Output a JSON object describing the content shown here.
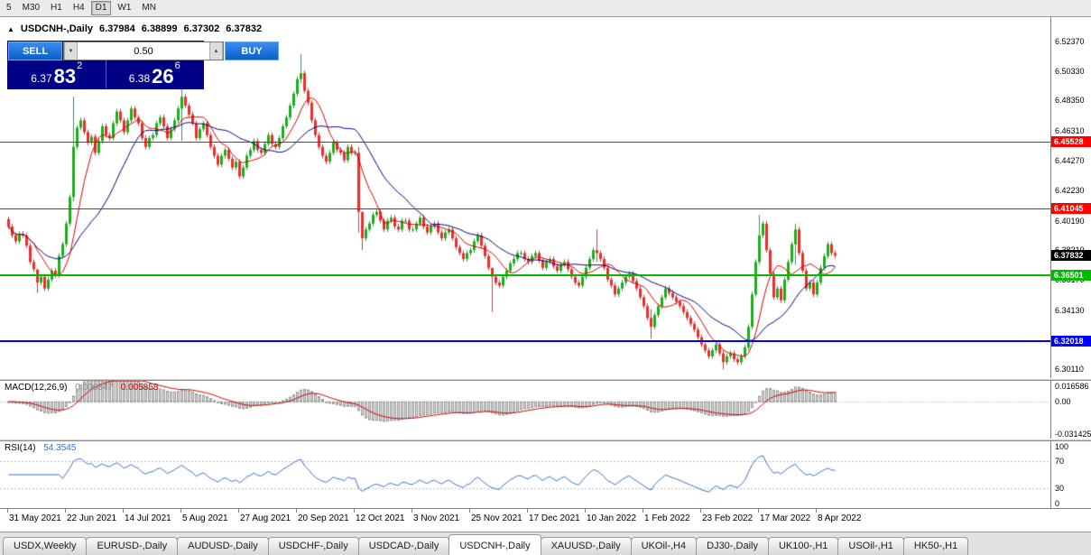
{
  "toolbar": {
    "timeframes": [
      "5",
      "M30",
      "H1",
      "H4",
      "D1",
      "W1",
      "MN"
    ],
    "active": "D1"
  },
  "chart_header": {
    "symbol": "USDCNH-,Daily",
    "open": "6.37984",
    "high": "6.38899",
    "low": "6.37302",
    "close": "6.37832"
  },
  "trade_panel": {
    "collapse_icon": "▲",
    "sell_label": "SELL",
    "buy_label": "BUY",
    "volume": "0.50",
    "spinner_down_icon": "▼",
    "spinner_up_icon": "▲",
    "sell_price": {
      "prefix": "6.37",
      "big": "83",
      "sup": "2"
    },
    "buy_price": {
      "prefix": "6.38",
      "big": "26",
      "sup": "6"
    }
  },
  "indicators": {
    "macd": {
      "label": "MACD(12,26,9)",
      "value_main": "0.006347",
      "value_signal": "0.005858",
      "axis_ticks": [
        {
          "value": 0.016586,
          "label": "0.016586"
        },
        {
          "value": 0,
          "label": "0.00"
        },
        {
          "value": -0.031425,
          "label": "-0.031425"
        }
      ]
    },
    "rsi": {
      "label": "RSI(14)",
      "value": "54.3545",
      "axis_ticks": [
        {
          "value": 100,
          "label": "100"
        },
        {
          "value": 70,
          "label": "70"
        },
        {
          "value": 30,
          "label": "30"
        },
        {
          "value": 0,
          "label": "0"
        }
      ]
    }
  },
  "price_axis": {
    "ticks": [
      {
        "value": 6.5237,
        "label": "6.52370"
      },
      {
        "value": 6.5033,
        "label": "6.50330"
      },
      {
        "value": 6.4835,
        "label": "6.48350"
      },
      {
        "value": 6.4631,
        "label": "6.46310"
      },
      {
        "value": 6.4427,
        "label": "6.44270"
      },
      {
        "value": 6.4223,
        "label": "6.42230"
      },
      {
        "value": 6.4019,
        "label": "6.40190"
      },
      {
        "value": 6.3821,
        "label": "6.38210"
      },
      {
        "value": 6.3617,
        "label": "6.36170"
      },
      {
        "value": 6.3413,
        "label": "6.34130"
      },
      {
        "value": 6.3209,
        "label": "6.32090"
      },
      {
        "value": 6.3011,
        "label": "6.30110"
      }
    ],
    "current": {
      "value": 6.37832,
      "label": "6.37832",
      "color": "#000000"
    }
  },
  "time_axis": {
    "bars_per_label": 16,
    "dates": [
      "31 May 2021",
      "22 Jun 2021",
      "14 Jul 2021",
      "5 Aug 2021",
      "27 Aug 2021",
      "20 Sep 2021",
      "12 Oct 2021",
      "3 Nov 2021",
      "25 Nov 2021",
      "17 Dec 2021",
      "10 Jan 2022",
      "1 Feb 2022",
      "23 Feb 2022",
      "17 Mar 2022",
      "8 Apr 2022"
    ]
  },
  "tabs": {
    "active_index": 5,
    "items": [
      "USDX,Weekly",
      "EURUSD-,Daily",
      "AUDUSD-,Daily",
      "USDCHF-,Daily",
      "USDCAD-,Daily",
      "USDCNH-,Daily",
      "XAUUSD-,Daily",
      "UKOil-,H4",
      "DJ30-,Daily",
      "UK100-,H1",
      "USOil-,H1",
      "HK50-,H1"
    ],
    "rsi_levels": [
      70,
      30
    ]
  },
  "chart_data": {
    "type": "candlestick",
    "symbol": "USDCNH-",
    "timeframe": "Daily",
    "title": "USDCNH-,Daily",
    "y_range": [
      6.2952,
      6.54
    ],
    "macd_range": [
      -0.0315,
      0.0175
    ],
    "first_open": 6.403,
    "default_wick": 0.0018,
    "ma_fast": 8,
    "ma_slow": 21,
    "colors": {
      "up": "#22A822",
      "down": "#E03232",
      "ma_fast": "#D40000",
      "ma_slow": "#000080",
      "macd_hist_fill": "#DCDCDC",
      "macd_hist_stroke": "#9A9A9A",
      "macd_signal": "#CC0000",
      "rsi": "#3A6FC8"
    },
    "levels": [
      {
        "value": 6.45528,
        "label": "6.45528",
        "color": "#FF0000",
        "thickness": 1
      },
      {
        "value": 6.41045,
        "label": "6.41045",
        "color": "#FF0000",
        "thickness": 1
      },
      {
        "value": 6.36501,
        "label": "6.36501",
        "color": "#00BB00",
        "thickness": 2
      },
      {
        "value": 6.32018,
        "label": "6.32018",
        "color": "#0000FF",
        "thickness": 2
      }
    ],
    "closes": [
      6.398,
      6.392,
      6.388,
      6.393,
      6.392,
      6.385,
      6.374,
      6.369,
      6.36,
      6.364,
      6.356,
      6.362,
      6.368,
      6.365,
      6.378,
      6.386,
      6.4,
      6.418,
      6.452,
      6.465,
      6.47,
      6.462,
      6.455,
      6.459,
      6.448,
      6.456,
      6.466,
      6.46,
      6.458,
      6.468,
      6.476,
      6.47,
      6.462,
      6.47,
      6.478,
      6.472,
      6.468,
      6.458,
      6.452,
      6.458,
      6.46,
      6.468,
      6.472,
      6.466,
      6.458,
      6.464,
      6.47,
      6.478,
      6.486,
      6.48,
      6.474,
      6.468,
      6.458,
      6.464,
      6.468,
      6.46,
      6.452,
      6.446,
      6.44,
      6.446,
      6.45,
      6.444,
      6.438,
      6.442,
      6.432,
      6.438,
      6.446,
      6.45,
      6.456,
      6.45,
      6.448,
      6.454,
      6.46,
      6.454,
      6.452,
      6.458,
      6.466,
      6.472,
      6.48,
      6.488,
      6.498,
      6.502,
      6.49,
      6.482,
      6.47,
      6.46,
      6.452,
      6.446,
      6.442,
      6.448,
      6.455,
      6.45,
      6.448,
      6.443,
      6.452,
      6.448,
      6.448,
      6.408,
      6.39,
      6.396,
      6.4,
      6.406,
      6.408,
      6.402,
      6.396,
      6.402,
      6.404,
      6.398,
      6.396,
      6.402,
      6.402,
      6.396,
      6.396,
      6.4,
      6.404,
      6.398,
      6.394,
      6.398,
      6.4,
      6.394,
      6.39,
      6.394,
      6.396,
      6.39,
      6.384,
      6.38,
      6.376,
      6.38,
      6.382,
      6.388,
      6.392,
      6.385,
      6.378,
      6.37,
      6.364,
      6.36,
      6.358,
      6.364,
      6.368,
      6.373,
      6.376,
      6.38,
      6.38,
      6.376,
      6.374,
      6.378,
      6.38,
      6.375,
      6.37,
      6.374,
      6.376,
      6.371,
      6.368,
      6.372,
      6.374,
      6.369,
      6.364,
      6.36,
      6.358,
      6.364,
      6.37,
      6.376,
      6.382,
      6.38,
      6.376,
      6.37,
      6.362,
      6.358,
      6.352,
      6.356,
      6.36,
      6.364,
      6.366,
      6.361,
      6.356,
      6.35,
      6.344,
      6.336,
      6.33,
      6.338,
      6.344,
      6.35,
      6.356,
      6.353,
      6.35,
      6.347,
      6.344,
      6.34,
      6.336,
      6.332,
      6.328,
      6.323,
      6.318,
      6.314,
      6.31,
      6.314,
      6.318,
      6.312,
      6.306,
      6.31,
      6.312,
      6.308,
      6.306,
      6.31,
      6.316,
      6.33,
      6.352,
      6.374,
      6.392,
      6.4,
      6.382,
      6.366,
      6.35,
      6.356,
      6.348,
      6.362,
      6.374,
      6.386,
      6.396,
      6.38,
      6.368,
      6.356,
      6.36,
      6.352,
      6.36,
      6.37,
      6.378,
      6.386,
      6.38,
      6.3783
    ],
    "wick_overrides": {
      "8": [
        6.366,
        6.353
      ],
      "18": [
        6.486,
        6.415
      ],
      "48": [
        6.497,
        6.456
      ],
      "81": [
        6.515,
        6.495
      ],
      "97": [
        6.452,
        6.394
      ],
      "98": [
        6.398,
        6.382
      ],
      "134": [
        6.37,
        6.34
      ],
      "163": [
        6.396,
        6.374
      ],
      "178": [
        6.342,
        6.322
      ],
      "198": [
        6.314,
        6.301
      ],
      "208": [
        6.406,
        6.372
      ],
      "218": [
        6.4,
        6.372
      ]
    }
  }
}
